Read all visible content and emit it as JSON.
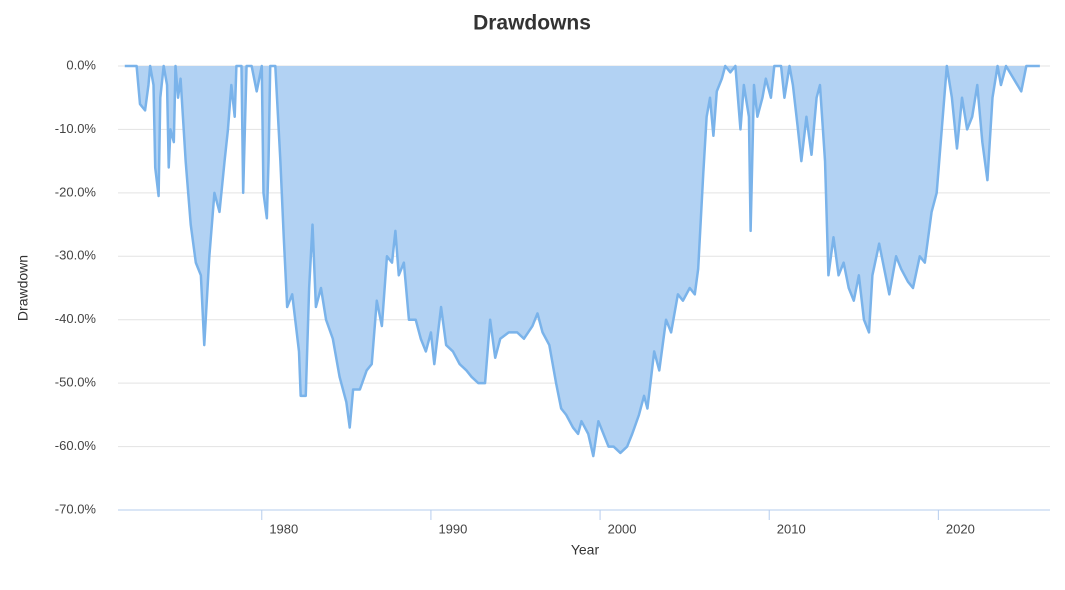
{
  "chart_data": {
    "type": "area",
    "title": "Drawdowns",
    "x_label": "Year",
    "y_label": "Drawdown",
    "color": "#7ab3ea",
    "fill": "#b2d2f3",
    "grid": true,
    "xlim": [
      1971.5,
      2026.6
    ],
    "xticks": [
      1980,
      1990,
      2000,
      2010,
      2020
    ],
    "ylim": [
      -70,
      0
    ],
    "yticks": [
      {
        "value": 0,
        "label": "0.0%"
      },
      {
        "value": -10,
        "label": "-10.0%"
      },
      {
        "value": -20,
        "label": "-20.0%"
      },
      {
        "value": -30,
        "label": "-30.0%"
      },
      {
        "value": -40,
        "label": "-40.0%"
      },
      {
        "value": -50,
        "label": "-50.0%"
      },
      {
        "value": -60,
        "label": "-60.0%"
      },
      {
        "value": -70,
        "label": "-70.0%"
      }
    ],
    "x": [
      1971.9,
      1972.6,
      1972.8,
      1973.1,
      1973.3,
      1973.4,
      1973.6,
      1973.7,
      1973.9,
      1974.0,
      1974.2,
      1974.4,
      1974.5,
      1974.6,
      1974.8,
      1974.9,
      1975.05,
      1975.2,
      1975.5,
      1975.8,
      1976.1,
      1976.4,
      1976.6,
      1976.9,
      1977.2,
      1977.5,
      1977.8,
      1978.0,
      1978.2,
      1978.4,
      1978.5,
      1978.8,
      1978.9,
      1979.1,
      1979.4,
      1979.7,
      1980.0,
      1980.1,
      1980.3,
      1980.4,
      1980.5,
      1980.8,
      1981.1,
      1981.3,
      1981.5,
      1981.8,
      1982.2,
      1982.3,
      1982.6,
      1982.8,
      1983.0,
      1983.2,
      1983.5,
      1983.8,
      1984.2,
      1984.6,
      1985.0,
      1985.2,
      1985.4,
      1985.8,
      1986.2,
      1986.5,
      1986.8,
      1987.1,
      1987.4,
      1987.7,
      1987.9,
      1988.1,
      1988.4,
      1988.7,
      1989.1,
      1989.4,
      1989.7,
      1990.0,
      1990.2,
      1990.6,
      1990.9,
      1991.3,
      1991.7,
      1992.1,
      1992.4,
      1992.8,
      1993.2,
      1993.5,
      1993.8,
      1994.1,
      1994.6,
      1995.1,
      1995.5,
      1996.0,
      1996.3,
      1996.6,
      1997.0,
      1997.4,
      1997.7,
      1998.0,
      1998.4,
      1998.7,
      1998.9,
      1999.3,
      1999.6,
      1999.9,
      2000.2,
      2000.5,
      2000.8,
      2001.2,
      2001.6,
      2001.9,
      2002.3,
      2002.6,
      2002.8,
      2003.2,
      2003.5,
      2003.9,
      2004.2,
      2004.6,
      2004.9,
      2005.3,
      2005.6,
      2005.8,
      2006.1,
      2006.3,
      2006.5,
      2006.7,
      2006.9,
      2007.2,
      2007.4,
      2007.7,
      2008.0,
      2008.3,
      2008.5,
      2008.8,
      2008.9,
      2009.1,
      2009.3,
      2009.6,
      2009.8,
      2010.1,
      2010.3,
      2010.7,
      2010.9,
      2011.2,
      2011.4,
      2011.7,
      2011.9,
      2012.2,
      2012.5,
      2012.8,
      2013.0,
      2013.3,
      2013.5,
      2013.8,
      2014.1,
      2014.4,
      2014.7,
      2015.0,
      2015.3,
      2015.6,
      2015.9,
      2016.1,
      2016.5,
      2016.8,
      2017.1,
      2017.5,
      2017.8,
      2018.2,
      2018.5,
      2018.9,
      2019.2,
      2019.6,
      2019.9,
      2020.2,
      2020.5,
      2020.8,
      2021.1,
      2021.4,
      2021.7,
      2022.0,
      2022.3,
      2022.6,
      2022.9,
      2023.2,
      2023.5,
      2023.7,
      2024.0,
      2024.9,
      2025.2,
      2026.0
    ],
    "values": [
      0,
      0,
      -6,
      -7,
      -3,
      0,
      -3,
      -16,
      -20.5,
      -5,
      0,
      -3,
      -16,
      -10,
      -12,
      0,
      -5,
      -2,
      -15,
      -25,
      -31,
      -33,
      -44,
      -30,
      -20,
      -23,
      -15,
      -10,
      -3,
      -8,
      0,
      0,
      -20,
      0,
      0,
      -4,
      0,
      -20,
      -24,
      -15,
      0,
      0,
      -15,
      -27,
      -38,
      -36,
      -45,
      -52,
      -52,
      -35,
      -25,
      -38,
      -35,
      -40,
      -43,
      -49,
      -53,
      -57,
      -51,
      -51,
      -48,
      -47,
      -37,
      -41,
      -30,
      -31,
      -26,
      -33,
      -31,
      -40,
      -40,
      -43,
      -45,
      -42,
      -47,
      -38,
      -44,
      -45,
      -47,
      -48,
      -49,
      -50,
      -50,
      -40,
      -46,
      -43,
      -42,
      -42,
      -43,
      -41,
      -39,
      -42,
      -44,
      -50,
      -54,
      -55,
      -57,
      -58,
      -56,
      -58,
      -61.5,
      -56,
      -58,
      -60,
      -60,
      -61,
      -60,
      -58,
      -55,
      -52,
      -54,
      -45,
      -48,
      -40,
      -42,
      -36,
      -37,
      -35,
      -36,
      -32,
      -17,
      -8,
      -5,
      -11,
      -4,
      -2,
      0,
      -1,
      0,
      -10,
      -3,
      -8,
      -26,
      -3,
      -8,
      -5,
      -2,
      -5,
      0,
      0,
      -5,
      0,
      -3,
      -10,
      -15,
      -8,
      -14,
      -5,
      -3,
      -15,
      -33,
      -27,
      -33,
      -31,
      -35,
      -37,
      -33,
      -40,
      -42,
      -33,
      -28,
      -32,
      -36,
      -30,
      -32,
      -34,
      -35,
      -30,
      -31,
      -23,
      -20,
      -10,
      0,
      -5,
      -13,
      -5,
      -10,
      -8,
      -3,
      -12,
      -18,
      -5,
      0,
      -3,
      0,
      -4,
      0,
      0
    ]
  }
}
